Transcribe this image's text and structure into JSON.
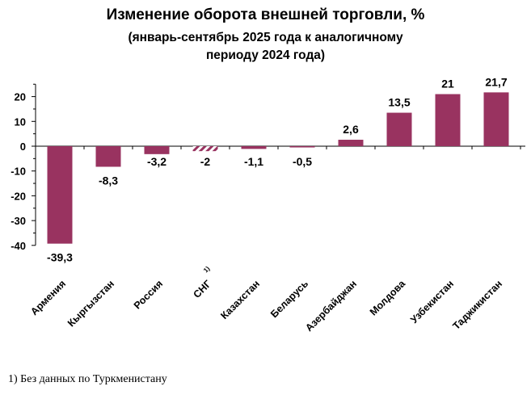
{
  "chart_data": {
    "type": "bar",
    "title": "Изменение оборота внешней торговли, %",
    "subtitle_line1": "(январь-сентябрь 2025 года к аналогичному",
    "subtitle_line2": "периоду 2024 года)",
    "categories": [
      "Армения",
      "Кыргызстан",
      "Россия",
      "СНГ",
      "Казахстан",
      "Беларусь",
      "Азербайджан",
      "Молдова",
      "Узбекистан",
      "Таджикистан"
    ],
    "values": [
      -39.3,
      -8.3,
      -3.2,
      -2,
      -1.1,
      -0.5,
      2.6,
      13.5,
      21,
      21.7
    ],
    "value_labels": [
      "-39,3",
      "-8,3",
      "-3,2",
      "-2",
      "-1,1",
      "-0,5",
      "2,6",
      "13,5",
      "21",
      "21,7"
    ],
    "hatched": [
      false,
      false,
      false,
      true,
      false,
      false,
      false,
      false,
      false,
      false
    ],
    "category_notes": [
      "",
      "",
      "",
      "1)",
      "",
      "",
      "",
      "",
      "",
      ""
    ],
    "yticks": [
      20,
      10,
      0,
      -10,
      -20,
      -30,
      -40
    ],
    "ylim": [
      -40,
      25
    ],
    "xlabel": "",
    "ylabel": "",
    "grid": false,
    "bar_color": "#993360",
    "footnote": "1) Без данных по Туркменистану"
  }
}
